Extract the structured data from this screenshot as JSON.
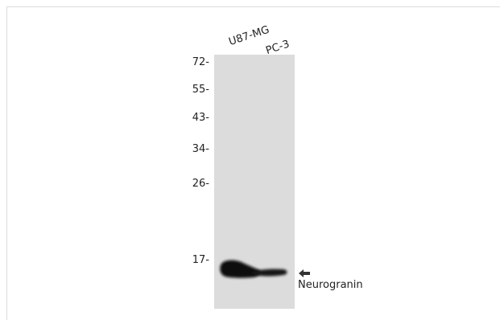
{
  "lanes": [
    "U87-MG",
    "PC-3"
  ],
  "markers": [
    "72-",
    "55-",
    "43-",
    "34-",
    "26-",
    "17-"
  ],
  "target": {
    "label": "Neurogranin",
    "arrow_icon": "arrow-left-icon"
  },
  "colors": {
    "membrane": "#dcdcdc",
    "band": "#0a0a0a",
    "text": "#222222"
  }
}
